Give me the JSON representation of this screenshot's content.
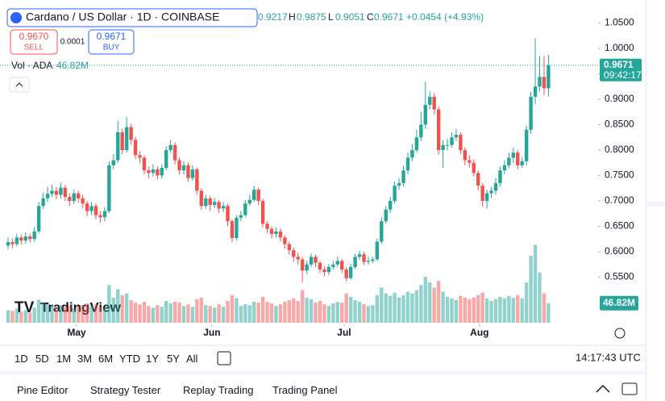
{
  "chart_data": {
    "type": "candlestick",
    "up_color": "#26a69a",
    "down_color": "#ef5350",
    "ylim": [
      0.4603,
      1.0794
    ],
    "yticks": [
      {
        "value": 1.05,
        "label": "1.0500"
      },
      {
        "value": 1.0,
        "label": "1.0000"
      },
      {
        "value": 0.95,
        "label": "0.9500"
      },
      {
        "value": 0.9,
        "label": "0.9000"
      },
      {
        "value": 0.85,
        "label": "0.8500"
      },
      {
        "value": 0.8,
        "label": "0.8000"
      },
      {
        "value": 0.75,
        "label": "0.7500"
      },
      {
        "value": 0.7,
        "label": "0.7000"
      },
      {
        "value": 0.65,
        "label": "0.6500"
      },
      {
        "value": 0.6,
        "label": "0.6000"
      },
      {
        "value": 0.55,
        "label": "0.5500"
      }
    ],
    "xlim": [
      -1.83,
      134.3
    ],
    "xticks": [
      {
        "value": 15.6,
        "label": "May"
      },
      {
        "value": 46.4,
        "label": "Jun"
      },
      {
        "value": 76.5,
        "label": "Jul"
      },
      {
        "value": 107.3,
        "label": "Aug"
      }
    ],
    "vlim": [
      0,
      260
    ],
    "last_price": {
      "value": 0.9671,
      "label": "0.9671",
      "countdown": "09:42:17"
    },
    "candles": [
      [
        0.612,
        0.628,
        0.605,
        0.619
      ],
      [
        0.619,
        0.626,
        0.607,
        0.615
      ],
      [
        0.615,
        0.635,
        0.61,
        0.628
      ],
      [
        0.628,
        0.633,
        0.614,
        0.622
      ],
      [
        0.622,
        0.638,
        0.616,
        0.63
      ],
      [
        0.63,
        0.636,
        0.618,
        0.625
      ],
      [
        0.625,
        0.648,
        0.62,
        0.64
      ],
      [
        0.64,
        0.698,
        0.636,
        0.69
      ],
      [
        0.69,
        0.716,
        0.684,
        0.705
      ],
      [
        0.705,
        0.728,
        0.698,
        0.714
      ],
      [
        0.714,
        0.732,
        0.708,
        0.72
      ],
      [
        0.72,
        0.727,
        0.703,
        0.712
      ],
      [
        0.712,
        0.736,
        0.705,
        0.726
      ],
      [
        0.726,
        0.731,
        0.7,
        0.708
      ],
      [
        0.708,
        0.715,
        0.69,
        0.7
      ],
      [
        0.7,
        0.722,
        0.694,
        0.715
      ],
      [
        0.715,
        0.72,
        0.696,
        0.705
      ],
      [
        0.705,
        0.712,
        0.686,
        0.695
      ],
      [
        0.695,
        0.7,
        0.67,
        0.68
      ],
      [
        0.68,
        0.698,
        0.672,
        0.69
      ],
      [
        0.69,
        0.695,
        0.664,
        0.672
      ],
      [
        0.672,
        0.68,
        0.658,
        0.668
      ],
      [
        0.668,
        0.688,
        0.66,
        0.68
      ],
      [
        0.68,
        0.778,
        0.676,
        0.77
      ],
      [
        0.77,
        0.792,
        0.762,
        0.78
      ],
      [
        0.78,
        0.858,
        0.775,
        0.835
      ],
      [
        0.835,
        0.842,
        0.792,
        0.8
      ],
      [
        0.8,
        0.865,
        0.795,
        0.845
      ],
      [
        0.845,
        0.852,
        0.81,
        0.82
      ],
      [
        0.82,
        0.826,
        0.782,
        0.79
      ],
      [
        0.79,
        0.798,
        0.774,
        0.785
      ],
      [
        0.785,
        0.79,
        0.752,
        0.76
      ],
      [
        0.76,
        0.768,
        0.745,
        0.755
      ],
      [
        0.755,
        0.772,
        0.748,
        0.762
      ],
      [
        0.762,
        0.768,
        0.742,
        0.75
      ],
      [
        0.75,
        0.772,
        0.744,
        0.765
      ],
      [
        0.765,
        0.808,
        0.76,
        0.8
      ],
      [
        0.8,
        0.82,
        0.795,
        0.81
      ],
      [
        0.81,
        0.815,
        0.772,
        0.78
      ],
      [
        0.78,
        0.786,
        0.752,
        0.76
      ],
      [
        0.76,
        0.778,
        0.752,
        0.77
      ],
      [
        0.77,
        0.775,
        0.738,
        0.745
      ],
      [
        0.745,
        0.77,
        0.74,
        0.762
      ],
      [
        0.762,
        0.766,
        0.712,
        0.72
      ],
      [
        0.72,
        0.725,
        0.682,
        0.69
      ],
      [
        0.69,
        0.712,
        0.684,
        0.705
      ],
      [
        0.705,
        0.71,
        0.68,
        0.692
      ],
      [
        0.692,
        0.706,
        0.686,
        0.698
      ],
      [
        0.698,
        0.702,
        0.676,
        0.685
      ],
      [
        0.685,
        0.698,
        0.678,
        0.69
      ],
      [
        0.69,
        0.694,
        0.65,
        0.66
      ],
      [
        0.66,
        0.664,
        0.618,
        0.627
      ],
      [
        0.627,
        0.672,
        0.622,
        0.667
      ],
      [
        0.667,
        0.68,
        0.66,
        0.672
      ],
      [
        0.672,
        0.702,
        0.668,
        0.695
      ],
      [
        0.695,
        0.712,
        0.69,
        0.702
      ],
      [
        0.702,
        0.73,
        0.698,
        0.722
      ],
      [
        0.722,
        0.726,
        0.692,
        0.7
      ],
      [
        0.7,
        0.704,
        0.648,
        0.655
      ],
      [
        0.655,
        0.66,
        0.636,
        0.645
      ],
      [
        0.645,
        0.65,
        0.626,
        0.635
      ],
      [
        0.635,
        0.648,
        0.628,
        0.64
      ],
      [
        0.64,
        0.646,
        0.62,
        0.628
      ],
      [
        0.628,
        0.632,
        0.606,
        0.615
      ],
      [
        0.615,
        0.62,
        0.594,
        0.603
      ],
      [
        0.603,
        0.608,
        0.58,
        0.59
      ],
      [
        0.59,
        0.598,
        0.574,
        0.585
      ],
      [
        0.585,
        0.59,
        0.54,
        0.563
      ],
      [
        0.563,
        0.582,
        0.556,
        0.575
      ],
      [
        0.575,
        0.596,
        0.57,
        0.59
      ],
      [
        0.59,
        0.594,
        0.57,
        0.578
      ],
      [
        0.578,
        0.582,
        0.558,
        0.565
      ],
      [
        0.565,
        0.572,
        0.552,
        0.56
      ],
      [
        0.56,
        0.576,
        0.554,
        0.57
      ],
      [
        0.57,
        0.582,
        0.564,
        0.575
      ],
      [
        0.575,
        0.59,
        0.57,
        0.582
      ],
      [
        0.582,
        0.586,
        0.558,
        0.565
      ],
      [
        0.565,
        0.57,
        0.542,
        0.548
      ],
      [
        0.548,
        0.576,
        0.545,
        0.57
      ],
      [
        0.57,
        0.596,
        0.566,
        0.59
      ],
      [
        0.59,
        0.602,
        0.584,
        0.595
      ],
      [
        0.595,
        0.6,
        0.574,
        0.58
      ],
      [
        0.58,
        0.59,
        0.575,
        0.582
      ],
      [
        0.582,
        0.59,
        0.578,
        0.585
      ],
      [
        0.585,
        0.626,
        0.582,
        0.62
      ],
      [
        0.62,
        0.668,
        0.616,
        0.66
      ],
      [
        0.66,
        0.69,
        0.655,
        0.683
      ],
      [
        0.683,
        0.708,
        0.676,
        0.7
      ],
      [
        0.7,
        0.738,
        0.694,
        0.73
      ],
      [
        0.73,
        0.745,
        0.722,
        0.735
      ],
      [
        0.735,
        0.77,
        0.728,
        0.76
      ],
      [
        0.76,
        0.795,
        0.752,
        0.785
      ],
      [
        0.785,
        0.812,
        0.778,
        0.8
      ],
      [
        0.8,
        0.84,
        0.795,
        0.825
      ],
      [
        0.825,
        0.875,
        0.818,
        0.85
      ],
      [
        0.85,
        0.935,
        0.842,
        0.889
      ],
      [
        0.889,
        0.915,
        0.88,
        0.905
      ],
      [
        0.905,
        0.912,
        0.87,
        0.88
      ],
      [
        0.88,
        0.886,
        0.79,
        0.8
      ],
      [
        0.8,
        0.82,
        0.765,
        0.81
      ],
      [
        0.81,
        0.822,
        0.8,
        0.81
      ],
      [
        0.81,
        0.835,
        0.805,
        0.825
      ],
      [
        0.825,
        0.842,
        0.818,
        0.83
      ],
      [
        0.83,
        0.835,
        0.792,
        0.8
      ],
      [
        0.8,
        0.806,
        0.77,
        0.78
      ],
      [
        0.78,
        0.79,
        0.765,
        0.775
      ],
      [
        0.775,
        0.782,
        0.748,
        0.755
      ],
      [
        0.755,
        0.76,
        0.72,
        0.73
      ],
      [
        0.73,
        0.735,
        0.688,
        0.7
      ],
      [
        0.7,
        0.722,
        0.685,
        0.715
      ],
      [
        0.715,
        0.728,
        0.705,
        0.72
      ],
      [
        0.72,
        0.745,
        0.712,
        0.735
      ],
      [
        0.735,
        0.768,
        0.728,
        0.76
      ],
      [
        0.76,
        0.78,
        0.752,
        0.77
      ],
      [
        0.77,
        0.795,
        0.764,
        0.785
      ],
      [
        0.785,
        0.805,
        0.775,
        0.795
      ],
      [
        0.795,
        0.8,
        0.762,
        0.77
      ],
      [
        0.77,
        0.786,
        0.765,
        0.778
      ],
      [
        0.778,
        0.848,
        0.77,
        0.84
      ],
      [
        0.84,
        0.915,
        0.832,
        0.905
      ],
      [
        0.905,
        1.02,
        0.89,
        0.925
      ],
      [
        0.925,
        0.985,
        0.915,
        0.944
      ],
      [
        0.944,
        0.985,
        0.908,
        0.9217
      ],
      [
        0.9217,
        0.9875,
        0.9051,
        0.9671
      ]
    ],
    "volume": [
      30,
      28,
      34,
      26,
      30,
      24,
      36,
      55,
      48,
      44,
      40,
      36,
      42,
      38,
      40,
      34,
      38,
      42,
      46,
      40,
      44,
      38,
      36,
      90,
      60,
      80,
      66,
      70,
      54,
      48,
      44,
      50,
      40,
      36,
      42,
      38,
      52,
      46,
      50,
      48,
      40,
      44,
      38,
      56,
      60,
      42,
      40,
      36,
      44,
      38,
      52,
      66,
      58,
      40,
      44,
      42,
      50,
      48,
      62,
      50,
      46,
      40,
      44,
      50,
      54,
      58,
      52,
      78,
      60,
      56,
      48,
      52,
      44,
      40,
      46,
      50,
      48,
      70,
      62,
      54,
      50,
      44,
      40,
      42,
      66,
      84,
      70,
      64,
      72,
      60,
      66,
      74,
      70,
      78,
      90,
      110,
      96,
      84,
      100,
      74,
      62,
      58,
      54,
      64,
      60,
      56,
      60,
      66,
      72,
      58,
      52,
      56,
      62,
      58,
      64,
      60,
      66,
      58,
      96,
      160,
      186,
      120,
      70,
      46.82
    ]
  },
  "ui": {
    "symbol": "Cardano / US Dollar · 1D · COINBASE",
    "ohlc": {
      "o": "0.9217",
      "h_key": "H",
      "h": "0.9875",
      "l_key": "L",
      "l": "0.9051",
      "c_key": "C",
      "c": "0.9671",
      "change": "+0.0454 (+4.93%)"
    },
    "sell_price": "0.9670",
    "sell": "SELL",
    "spread": "0.0001",
    "buy_price": "0.9671",
    "buy": "BUY",
    "vol_label": "Vol · ADA",
    "vol_value": "46.82M",
    "vol_tag": "46.82M",
    "logo": "TradingView",
    "ranges": [
      "1D",
      "5D",
      "1M",
      "3M",
      "6M",
      "YTD",
      "1Y",
      "5Y",
      "All"
    ],
    "clock": "14:17:43 UTC",
    "tabs": [
      "Pine Editor",
      "Strategy Tester",
      "Replay Trading",
      "Trading Panel"
    ]
  }
}
